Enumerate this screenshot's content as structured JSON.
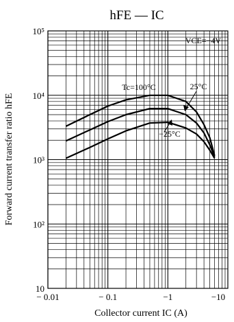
{
  "chart_data": {
    "type": "line",
    "title": "hFE — IC",
    "xlabel": "Collector current IC (A)",
    "ylabel": "Forward current transfer ratio hFE",
    "x_scale": "log",
    "y_scale": "log",
    "xlim": [
      0.01,
      10
    ],
    "ylim": [
      10,
      100000
    ],
    "x_ticks": [
      {
        "value": 0.01,
        "label": "− 0.01"
      },
      {
        "value": 0.1,
        "label": "− 0.1"
      },
      {
        "value": 1,
        "label": "−1"
      },
      {
        "value": 10,
        "label": "−10"
      }
    ],
    "y_ticks": [
      {
        "value": 10,
        "label": "10"
      },
      {
        "value": 100,
        "label": "10²"
      },
      {
        "value": 1000,
        "label": "10³"
      },
      {
        "value": 10000,
        "label": "10⁴"
      },
      {
        "value": 100000,
        "label": "10⁵"
      }
    ],
    "grid": true,
    "annotations": [
      {
        "text": "VCE=−4V"
      },
      {
        "text": "Tc=100°C"
      },
      {
        "text": "25°C"
      },
      {
        "text": "−25°C"
      }
    ],
    "series": [
      {
        "name": "Tc=100°C",
        "x": [
          0.02,
          0.05,
          0.1,
          0.2,
          0.5,
          1.0,
          2.0,
          3.0,
          4.0,
          5.0,
          6.0
        ],
        "y": [
          3300,
          5000,
          6800,
          8500,
          10000,
          10000,
          8000,
          5500,
          3500,
          2200,
          1150
        ]
      },
      {
        "name": "25°C",
        "x": [
          0.02,
          0.05,
          0.1,
          0.2,
          0.5,
          1.0,
          2.0,
          3.0,
          4.0,
          5.0,
          6.0
        ],
        "y": [
          1950,
          2900,
          3900,
          5000,
          6200,
          6200,
          5000,
          3700,
          2600,
          1700,
          1100
        ]
      },
      {
        "name": "−25°C",
        "x": [
          0.02,
          0.05,
          0.1,
          0.2,
          0.5,
          1.0,
          2.0,
          3.0,
          4.0,
          5.0,
          6.0
        ],
        "y": [
          1050,
          1550,
          2100,
          2800,
          3700,
          3800,
          3100,
          2500,
          1900,
          1400,
          1050
        ]
      }
    ]
  }
}
